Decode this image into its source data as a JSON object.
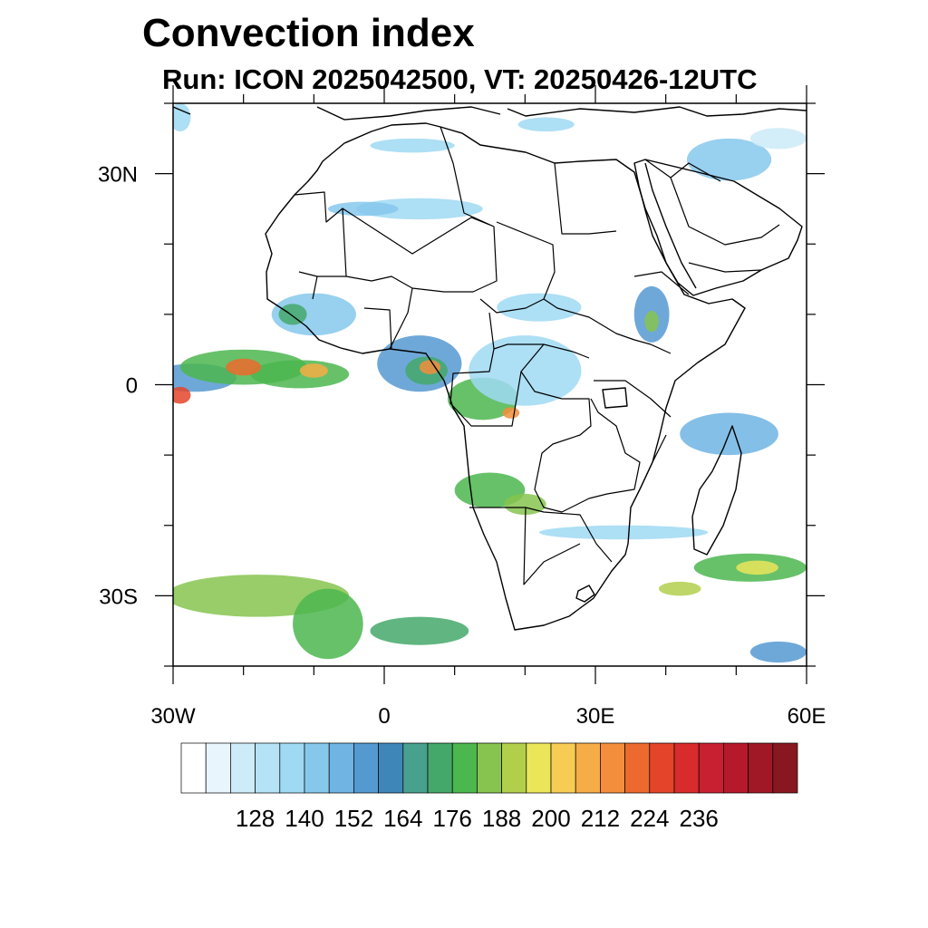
{
  "title": "Convection index",
  "subtitle": "Run: ICON 2025042500,  VT: 20250426-12UTC",
  "axes": {
    "lon_range": [
      -30,
      60
    ],
    "lat_range": [
      -40,
      40
    ],
    "x_ticks": [
      {
        "lon": -30,
        "label": "30W"
      },
      {
        "lon": 0,
        "label": "0"
      },
      {
        "lon": 30,
        "label": "30E"
      },
      {
        "lon": 60,
        "label": "60E"
      }
    ],
    "y_ticks": [
      {
        "lat": 30,
        "label": "30N"
      },
      {
        "lat": 0,
        "label": "0"
      },
      {
        "lat": -30,
        "label": "30S"
      }
    ]
  },
  "colorbar": {
    "colors": [
      "#ffffff",
      "#e8f5fc",
      "#cdebf8",
      "#b5e2f6",
      "#9fd9f3",
      "#86c8ec",
      "#6fb4e3",
      "#5599d1",
      "#3f86b8",
      "#48a08f",
      "#44a86a",
      "#4cb64f",
      "#86c44f",
      "#b2cf4c",
      "#ebe55a",
      "#f7cc55",
      "#f6ad47",
      "#f28e3c",
      "#ec6a2e",
      "#e4452a",
      "#d82b2c",
      "#c82030",
      "#b41a2c",
      "#a01826",
      "#881820"
    ],
    "labels": [
      "128",
      "140",
      "152",
      "164",
      "176",
      "188",
      "200",
      "212",
      "224",
      "236"
    ]
  },
  "convection_areas": [
    {
      "lon": -27,
      "lat": 1,
      "rx": 6,
      "ry": 2,
      "color": "#5599d1"
    },
    {
      "lon": -20,
      "lat": 2.5,
      "rx": 9,
      "ry": 2.5,
      "color": "#4cb64f"
    },
    {
      "lon": -12,
      "lat": 1.5,
      "rx": 7,
      "ry": 2,
      "color": "#4cb64f"
    },
    {
      "lon": -20,
      "lat": 2.5,
      "rx": 2.5,
      "ry": 1.2,
      "color": "#ec6a2e"
    },
    {
      "lon": -10,
      "lat": 2,
      "rx": 2,
      "ry": 1,
      "color": "#f6ad47"
    },
    {
      "lon": -29,
      "lat": -1.5,
      "rx": 1.5,
      "ry": 1.2,
      "color": "#e4452a"
    },
    {
      "lon": 5,
      "lat": 3,
      "rx": 6,
      "ry": 4,
      "color": "#5599d1"
    },
    {
      "lon": 6,
      "lat": 2,
      "rx": 3,
      "ry": 2,
      "color": "#44a86a"
    },
    {
      "lon": 6.5,
      "lat": 2.5,
      "rx": 1.5,
      "ry": 1,
      "color": "#f28e3c"
    },
    {
      "lon": 14,
      "lat": -2,
      "rx": 5,
      "ry": 3,
      "color": "#4cb64f"
    },
    {
      "lon": 18,
      "lat": -4,
      "rx": 1.2,
      "ry": 0.8,
      "color": "#f28e3c"
    },
    {
      "lon": 20,
      "lat": 2,
      "rx": 8,
      "ry": 5,
      "color": "#9fd9f3"
    },
    {
      "lon": -10,
      "lat": 10,
      "rx": 6,
      "ry": 3,
      "color": "#86c8ec"
    },
    {
      "lon": -13,
      "lat": 10,
      "rx": 2,
      "ry": 1.5,
      "color": "#44a86a"
    },
    {
      "lon": 38,
      "lat": 10,
      "rx": 2.5,
      "ry": 4,
      "color": "#5599d1"
    },
    {
      "lon": 38,
      "lat": 9,
      "rx": 1,
      "ry": 1.5,
      "color": "#86c44f"
    },
    {
      "lon": 22,
      "lat": 11,
      "rx": 6,
      "ry": 2,
      "color": "#9fd9f3"
    },
    {
      "lon": 49,
      "lat": -7,
      "rx": 7,
      "ry": 3,
      "color": "#6fb4e3"
    },
    {
      "lon": 15,
      "lat": -15,
      "rx": 5,
      "ry": 2.5,
      "color": "#4cb64f"
    },
    {
      "lon": 20,
      "lat": -17,
      "rx": 3,
      "ry": 1.5,
      "color": "#86c44f"
    },
    {
      "lon": 34,
      "lat": -21,
      "rx": 12,
      "ry": 1,
      "color": "#9fd9f3"
    },
    {
      "lon": 52,
      "lat": -26,
      "rx": 8,
      "ry": 2,
      "color": "#4cb64f"
    },
    {
      "lon": 53,
      "lat": -26,
      "rx": 3,
      "ry": 1,
      "color": "#ebe55a"
    },
    {
      "lon": 42,
      "lat": -29,
      "rx": 3,
      "ry": 1,
      "color": "#b2cf4c"
    },
    {
      "lon": -18,
      "lat": -30,
      "rx": 13,
      "ry": 3,
      "color": "#86c44f"
    },
    {
      "lon": -8,
      "lat": -34,
      "rx": 5,
      "ry": 5,
      "color": "#4cb64f"
    },
    {
      "lon": 5,
      "lat": -35,
      "rx": 7,
      "ry": 2,
      "color": "#44a86a"
    },
    {
      "lon": 56,
      "lat": -38,
      "rx": 4,
      "ry": 1.5,
      "color": "#5599d1"
    },
    {
      "lon": 5,
      "lat": 25,
      "rx": 9,
      "ry": 1.5,
      "color": "#9fd9f3"
    },
    {
      "lon": -3,
      "lat": 25,
      "rx": 5,
      "ry": 1,
      "color": "#86c8ec"
    },
    {
      "lon": 4,
      "lat": 34,
      "rx": 6,
      "ry": 1,
      "color": "#9fd9f3"
    },
    {
      "lon": 23,
      "lat": 37,
      "rx": 4,
      "ry": 1,
      "color": "#9fd9f3"
    },
    {
      "lon": 49,
      "lat": 32,
      "rx": 6,
      "ry": 3,
      "color": "#86c8ec"
    },
    {
      "lon": 56,
      "lat": 35,
      "rx": 4,
      "ry": 1.5,
      "color": "#cdebf8"
    },
    {
      "lon": -29,
      "lat": 38,
      "rx": 1.5,
      "ry": 2,
      "color": "#9fd9f3"
    }
  ]
}
